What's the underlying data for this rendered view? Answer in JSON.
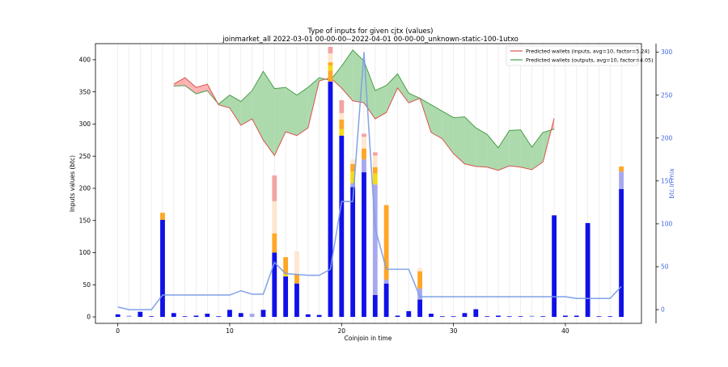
{
  "chart_data": {
    "type": "bar",
    "title": "Type of inputs for given cjtx (values)",
    "subtitle": "joinmarket_all 2022-03-01 00-00-00--2022-04-01 00-00-00_unknown-static-100-1utxo",
    "xlabel": "Coinjoin in time",
    "ylabel": "Inputs values (btc)",
    "y2label": "btc in mix",
    "xlim": [
      -2,
      46.8
    ],
    "ylim": [
      -10,
      425
    ],
    "y2lim": [
      -16,
      310
    ],
    "xticks": [
      0,
      10,
      20,
      30,
      40
    ],
    "yticks": [
      0,
      50,
      100,
      150,
      200,
      250,
      300,
      350,
      400
    ],
    "y2ticks": [
      0,
      50,
      100,
      150,
      200,
      250,
      300
    ],
    "legend_position": "upper right",
    "legend": [
      "Predicted wallets (inputs, avg=10, factor=5.24)",
      "Predicted wallets (outputs, avg=10, factor=4.05)"
    ],
    "colors": {
      "blue": "#1010e8",
      "light_blue": "#a8a8f0",
      "orange": "#ffa726",
      "yellow": "#f2dc16",
      "peach": "#fde7cf",
      "pink": "#f4a3a3",
      "line": "#7b9de6",
      "inputs_line": "#d9534f",
      "inputs_fill": "#ffb3b3",
      "outputs_line": "#4a9e4a",
      "outputs_fill": "#addaad"
    },
    "bars": [
      {
        "x": 0,
        "segments": [
          {
            "color": "blue",
            "value": 4
          }
        ]
      },
      {
        "x": 1,
        "segments": [
          {
            "color": "light_blue",
            "value": 2
          }
        ]
      },
      {
        "x": 2,
        "segments": [
          {
            "color": "blue",
            "value": 8
          }
        ]
      },
      {
        "x": 3,
        "segments": [
          {
            "color": "blue",
            "value": 1
          }
        ]
      },
      {
        "x": 4,
        "segments": [
          {
            "color": "blue",
            "value": 151
          },
          {
            "color": "orange",
            "value": 11
          }
        ]
      },
      {
        "x": 5,
        "segments": [
          {
            "color": "blue",
            "value": 6
          }
        ]
      },
      {
        "x": 6,
        "segments": [
          {
            "color": "blue",
            "value": 1
          }
        ]
      },
      {
        "x": 7,
        "segments": [
          {
            "color": "blue",
            "value": 2
          }
        ]
      },
      {
        "x": 8,
        "segments": [
          {
            "color": "blue",
            "value": 5
          }
        ]
      },
      {
        "x": 9,
        "segments": [
          {
            "color": "blue",
            "value": 1
          }
        ]
      },
      {
        "x": 10,
        "segments": [
          {
            "color": "blue",
            "value": 11
          }
        ]
      },
      {
        "x": 11,
        "segments": [
          {
            "color": "blue",
            "value": 6
          }
        ]
      },
      {
        "x": 12,
        "segments": [
          {
            "color": "light_blue",
            "value": 5
          }
        ]
      },
      {
        "x": 13,
        "segments": [
          {
            "color": "blue",
            "value": 11
          }
        ]
      },
      {
        "x": 14,
        "segments": [
          {
            "color": "blue",
            "value": 100
          },
          {
            "color": "orange",
            "value": 30
          },
          {
            "color": "peach",
            "value": 50
          },
          {
            "color": "pink",
            "value": 40
          }
        ]
      },
      {
        "x": 15,
        "segments": [
          {
            "color": "blue",
            "value": 63
          },
          {
            "color": "yellow",
            "value": 3
          },
          {
            "color": "orange",
            "value": 27
          }
        ]
      },
      {
        "x": 16,
        "segments": [
          {
            "color": "blue",
            "value": 52
          },
          {
            "color": "orange",
            "value": 15
          },
          {
            "color": "peach",
            "value": 35
          }
        ]
      },
      {
        "x": 17,
        "segments": [
          {
            "color": "blue",
            "value": 4
          }
        ]
      },
      {
        "x": 18,
        "segments": [
          {
            "color": "blue",
            "value": 3
          }
        ]
      },
      {
        "x": 19,
        "segments": [
          {
            "color": "blue",
            "value": 366
          },
          {
            "color": "orange",
            "value": 17
          },
          {
            "color": "yellow",
            "value": 8
          },
          {
            "color": "orange",
            "value": 5
          },
          {
            "color": "peach",
            "value": 14
          },
          {
            "color": "pink",
            "value": 10
          }
        ]
      },
      {
        "x": 20,
        "segments": [
          {
            "color": "blue",
            "value": 282
          },
          {
            "color": "yellow",
            "value": 10
          },
          {
            "color": "orange",
            "value": 15
          },
          {
            "color": "peach",
            "value": 10
          },
          {
            "color": "pink",
            "value": 20
          }
        ]
      },
      {
        "x": 21,
        "segments": [
          {
            "color": "blue",
            "value": 202
          },
          {
            "color": "light_blue",
            "value": 6
          },
          {
            "color": "yellow",
            "value": 18
          },
          {
            "color": "orange",
            "value": 12
          },
          {
            "color": "peach",
            "value": 7
          }
        ]
      },
      {
        "x": 22,
        "segments": [
          {
            "color": "blue",
            "value": 225
          },
          {
            "color": "light_blue",
            "value": 20
          },
          {
            "color": "orange",
            "value": 17
          },
          {
            "color": "peach",
            "value": 18
          },
          {
            "color": "pink",
            "value": 5
          }
        ]
      },
      {
        "x": 23,
        "segments": [
          {
            "color": "blue",
            "value": 34
          },
          {
            "color": "light_blue",
            "value": 172
          },
          {
            "color": "yellow",
            "value": 17
          },
          {
            "color": "orange",
            "value": 10
          },
          {
            "color": "peach",
            "value": 18
          },
          {
            "color": "pink",
            "value": 5
          }
        ]
      },
      {
        "x": 24,
        "segments": [
          {
            "color": "blue",
            "value": 52
          },
          {
            "color": "light_blue",
            "value": 6
          },
          {
            "color": "orange",
            "value": 116
          }
        ]
      },
      {
        "x": 25,
        "segments": [
          {
            "color": "blue",
            "value": 2
          }
        ]
      },
      {
        "x": 26,
        "segments": [
          {
            "color": "blue",
            "value": 9
          }
        ]
      },
      {
        "x": 27,
        "segments": [
          {
            "color": "blue",
            "value": 27
          },
          {
            "color": "light_blue",
            "value": 17
          },
          {
            "color": "orange",
            "value": 27
          },
          {
            "color": "peach",
            "value": 5
          }
        ]
      },
      {
        "x": 28,
        "segments": [
          {
            "color": "blue",
            "value": 5
          }
        ]
      },
      {
        "x": 29,
        "segments": [
          {
            "color": "blue",
            "value": 1
          }
        ]
      },
      {
        "x": 30,
        "segments": [
          {
            "color": "blue",
            "value": 1
          }
        ]
      },
      {
        "x": 31,
        "segments": [
          {
            "color": "blue",
            "value": 6
          }
        ]
      },
      {
        "x": 32,
        "segments": [
          {
            "color": "blue",
            "value": 12
          }
        ]
      },
      {
        "x": 33,
        "segments": [
          {
            "color": "blue",
            "value": 1
          }
        ]
      },
      {
        "x": 34,
        "segments": [
          {
            "color": "blue",
            "value": 2
          }
        ]
      },
      {
        "x": 35,
        "segments": [
          {
            "color": "blue",
            "value": 1
          }
        ]
      },
      {
        "x": 36,
        "segments": [
          {
            "color": "blue",
            "value": 1
          }
        ]
      },
      {
        "x": 37,
        "segments": [
          {
            "color": "light_blue",
            "value": 2
          }
        ]
      },
      {
        "x": 38,
        "segments": [
          {
            "color": "blue",
            "value": 1
          }
        ]
      },
      {
        "x": 39,
        "segments": [
          {
            "color": "blue",
            "value": 158
          }
        ]
      },
      {
        "x": 40,
        "segments": [
          {
            "color": "blue",
            "value": 2
          }
        ]
      },
      {
        "x": 41,
        "segments": [
          {
            "color": "blue",
            "value": 2
          }
        ]
      },
      {
        "x": 42,
        "segments": [
          {
            "color": "blue",
            "value": 146
          }
        ]
      },
      {
        "x": 43,
        "segments": [
          {
            "color": "blue",
            "value": 1
          }
        ]
      },
      {
        "x": 44,
        "segments": [
          {
            "color": "blue",
            "value": 1
          }
        ]
      },
      {
        "x": 45,
        "segments": [
          {
            "color": "blue",
            "value": 199
          },
          {
            "color": "light_blue",
            "value": 27
          },
          {
            "color": "orange",
            "value": 8
          }
        ]
      }
    ],
    "btc_in_mix": {
      "x": [
        0,
        1,
        2,
        3,
        4,
        5,
        6,
        7,
        8,
        9,
        10,
        11,
        12,
        13,
        14,
        15,
        16,
        17,
        18,
        19,
        20,
        21,
        22,
        23,
        24,
        25,
        26,
        27,
        28,
        29,
        30,
        31,
        32,
        33,
        34,
        35,
        36,
        37,
        38,
        39,
        40,
        41,
        42,
        43,
        44,
        45
      ],
      "values": [
        3,
        0,
        0,
        0,
        17,
        17,
        17,
        17,
        17,
        17,
        17,
        22,
        18,
        18,
        55,
        42,
        41,
        40,
        40,
        47,
        126,
        126,
        300,
        95,
        47,
        47,
        47,
        15,
        15,
        15,
        15,
        15,
        15,
        15,
        15,
        15,
        15,
        15,
        15,
        15,
        15,
        13,
        13,
        13,
        13,
        27
      ]
    },
    "predicted_inputs": {
      "x": [
        5,
        6,
        7,
        8,
        9,
        10,
        11,
        12,
        13,
        14,
        15,
        16,
        17,
        18,
        19,
        20,
        21,
        22,
        23,
        24,
        25,
        26,
        27,
        28,
        29,
        30,
        31,
        32,
        33,
        34,
        35,
        36,
        37,
        38,
        39
      ],
      "values": [
        362,
        372,
        357,
        362,
        330,
        325,
        298,
        308,
        275,
        251,
        288,
        282,
        294,
        367,
        372,
        356,
        336,
        333,
        308,
        318,
        356,
        333,
        340,
        287,
        277,
        254,
        238,
        234,
        233,
        228,
        235,
        233,
        229,
        241,
        309
      ]
    },
    "predicted_outputs": {
      "x": [
        5,
        6,
        7,
        8,
        9,
        10,
        11,
        12,
        13,
        14,
        15,
        16,
        17,
        18,
        19,
        20,
        21,
        22,
        23,
        24,
        25,
        26,
        27,
        28,
        29,
        30,
        31,
        32,
        33,
        34,
        35,
        36,
        37,
        38,
        39
      ],
      "values": [
        359,
        360,
        347,
        352,
        331,
        345,
        335,
        352,
        382,
        355,
        357,
        345,
        357,
        372,
        368,
        390,
        415,
        398,
        352,
        360,
        378,
        348,
        340,
        330,
        320,
        310,
        311,
        294,
        284,
        263,
        290,
        291,
        264,
        287,
        292
      ]
    }
  }
}
